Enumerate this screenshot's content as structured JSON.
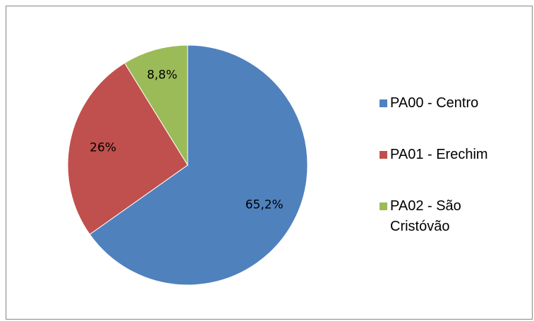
{
  "chart_data": {
    "type": "pie",
    "categories": [
      "PA00 - Centro",
      "PA01 - Erechim",
      "PA02 - São Cristóvão"
    ],
    "values": [
      65.2,
      26,
      8.8
    ],
    "value_labels": [
      "65,2%",
      "26%",
      "8,8%"
    ],
    "colors": [
      "#4f81bd",
      "#c0504d",
      "#9bbb59"
    ],
    "legend": "right"
  }
}
